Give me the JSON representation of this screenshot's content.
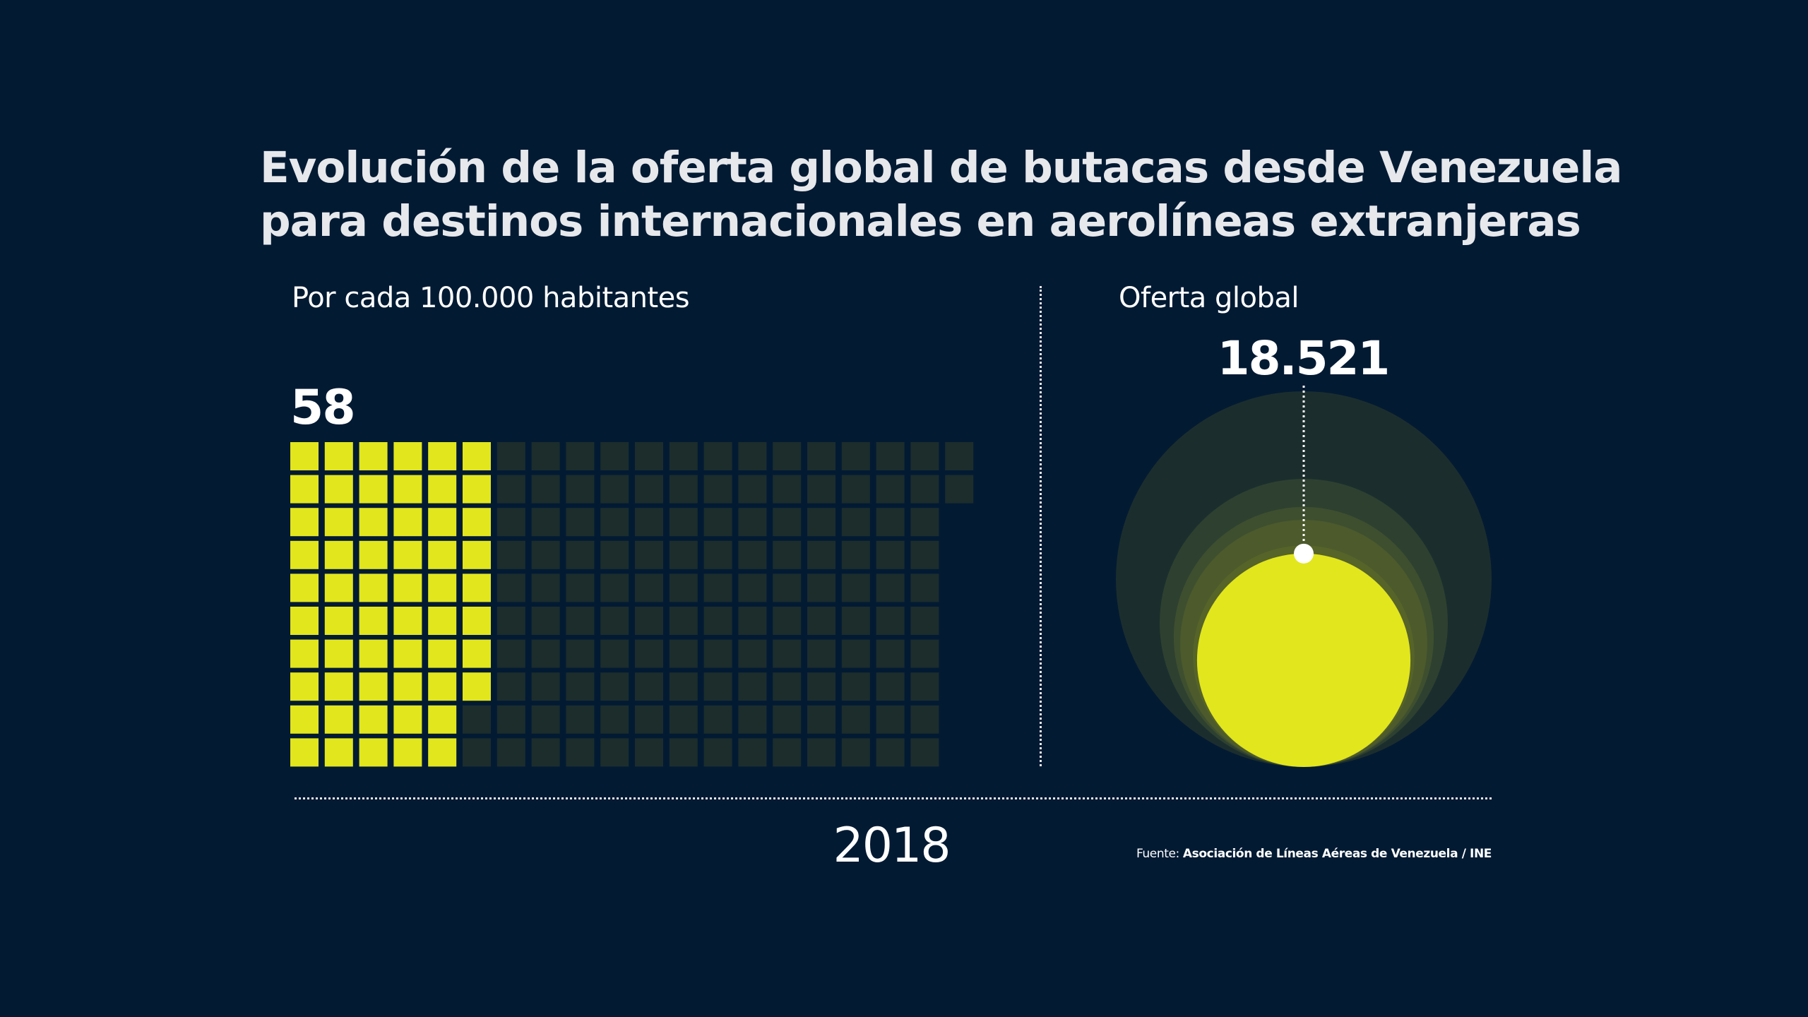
{
  "title": {
    "line1": "Evolución de la oferta global de butacas desde Venezuela",
    "line2": "para destinos internacionales en aerolíneas extranjeras"
  },
  "left_panel": {
    "label": "Por cada 100.000 habitantes",
    "value_label": "58"
  },
  "right_panel": {
    "label": "Oferta global",
    "value_label": "18.521"
  },
  "footer": {
    "year": "2018",
    "source_prefix": "Fuente: ",
    "source_name": "Asociación de Líneas Aéreas de Venezuela / INE"
  },
  "colors": {
    "background": "#031a33",
    "highlight": "#e2e61c",
    "empty_cell": "#1c2d2c",
    "text": "#ffffff",
    "title_text": "#e6e8ec"
  },
  "chart_data": [
    {
      "type": "waffle",
      "title": "Por cada 100.000 habitantes",
      "year": "2018",
      "value": 58,
      "total_cells": 192,
      "rows": 10,
      "row_lengths": [
        20,
        20,
        19,
        19,
        19,
        19,
        19,
        19,
        19,
        19
      ],
      "filled_per_row": [
        6,
        6,
        6,
        6,
        6,
        6,
        6,
        6,
        5,
        5
      ],
      "value_label": "58"
    },
    {
      "type": "nested-circles",
      "title": "Oferta global",
      "year": "2018",
      "value": 18521,
      "value_label": "18.521",
      "reference_circles_relative_diameter": [
        1.0,
        0.767,
        0.692,
        0.658,
        0.59
      ],
      "highlight_circle_relative_diameter": 0.568,
      "layer_colors": [
        "#1b2e2d",
        "#2e4030",
        "#3e4f2f",
        "#4c5a2c",
        "#566329"
      ]
    }
  ]
}
